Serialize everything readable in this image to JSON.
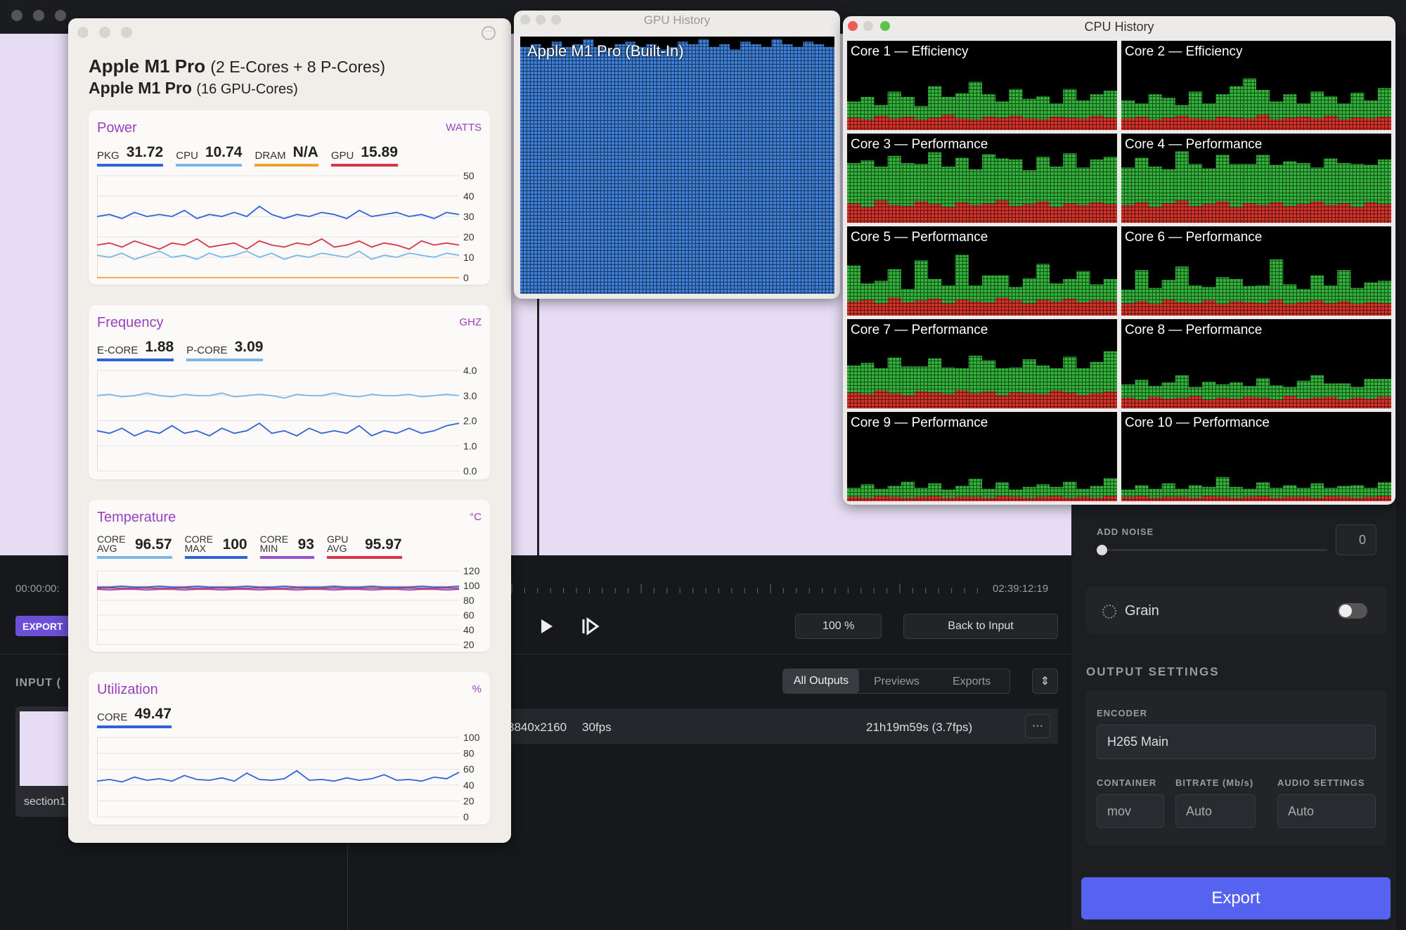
{
  "app": {
    "timecode_start": "00:00:00:",
    "export_tag": "EXPORT",
    "input_label": "INPUT (",
    "thumbnail_label": "section1",
    "timecode_end": "02:39:12:19",
    "zoom": "100 %",
    "back_button": "Back to Input",
    "tabs": [
      "All Outputs",
      "Previews",
      "Exports"
    ],
    "output_row": {
      "resolution": "3840x2160",
      "fps": "30fps",
      "eta": "21h19m59s (3.7fps)"
    },
    "add_noise": {
      "label": "ADD NOISE",
      "value": 0
    },
    "grain": "Grain",
    "output_settings": {
      "title": "OUTPUT SETTINGS",
      "encoder_label": "ENCODER",
      "encoder": "H265 Main",
      "container_label": "CONTAINER",
      "container": "mov",
      "bitrate_label": "BITRATE (Mb/s)",
      "bitrate": "Auto",
      "audio_label": "AUDIO SETTINGS",
      "audio": "Auto"
    },
    "export_button": "Export"
  },
  "stats": {
    "cpu_name": "Apple M1 Pro",
    "cpu_cores": "(2 E-Cores + 8 P-Cores)",
    "gpu_name": "Apple M1 Pro",
    "gpu_cores": "(16 GPU-Cores)",
    "power": {
      "type": "line",
      "title": "Power",
      "unit": "WATTS",
      "ylim": [
        0,
        50
      ],
      "yticks": [
        0,
        10,
        20,
        30,
        40,
        50
      ],
      "series": [
        {
          "name": "PKG",
          "value": 31.72,
          "color": "#2f63d6",
          "values": [
            30,
            31,
            29,
            32,
            30,
            31,
            30,
            33,
            29,
            31,
            30,
            32,
            30,
            35,
            31,
            29,
            31,
            30,
            32,
            31,
            29,
            33,
            30,
            31,
            32,
            30,
            31,
            29,
            32,
            31
          ]
        },
        {
          "name": "CPU",
          "value": 10.74,
          "color": "#7ab6e8",
          "values": [
            11,
            10,
            12,
            9,
            11,
            13,
            10,
            11,
            9,
            12,
            10,
            11,
            13,
            10,
            12,
            9,
            11,
            10,
            12,
            11,
            10,
            13,
            9,
            11,
            10,
            12,
            11,
            10,
            12,
            11
          ]
        },
        {
          "name": "DRAM",
          "value": "N/A",
          "color": "#f0a030",
          "values": [
            0,
            0,
            0,
            0,
            0,
            0,
            0,
            0,
            0,
            0,
            0,
            0,
            0,
            0,
            0,
            0,
            0,
            0,
            0,
            0,
            0,
            0,
            0,
            0,
            0,
            0,
            0,
            0,
            0,
            0
          ]
        },
        {
          "name": "GPU",
          "value": 15.89,
          "color": "#d8344a",
          "values": [
            16,
            17,
            15,
            18,
            16,
            14,
            17,
            16,
            19,
            15,
            16,
            17,
            14,
            18,
            16,
            15,
            17,
            16,
            19,
            15,
            16,
            18,
            15,
            17,
            16,
            14,
            18,
            16,
            17,
            16
          ]
        }
      ]
    },
    "frequency": {
      "type": "line",
      "title": "Frequency",
      "unit": "GHZ",
      "ylim": [
        0,
        4
      ],
      "yticks": [
        {
          "value": 0,
          "label": "0.0"
        },
        {
          "value": 1,
          "label": "1.0"
        },
        {
          "value": 2,
          "label": "2.0"
        },
        {
          "value": 3,
          "label": "3.0"
        },
        {
          "value": 4,
          "label": "4.0"
        }
      ],
      "series": [
        {
          "name": "E-CORE",
          "value": 1.88,
          "color": "#2f63d6",
          "values": [
            1.6,
            1.5,
            1.7,
            1.4,
            1.6,
            1.5,
            1.8,
            1.5,
            1.6,
            1.4,
            1.7,
            1.5,
            1.6,
            1.9,
            1.5,
            1.6,
            1.4,
            1.7,
            1.5,
            1.6,
            1.5,
            1.8,
            1.4,
            1.6,
            1.5,
            1.7,
            1.5,
            1.6,
            1.8,
            1.9
          ]
        },
        {
          "name": "P-CORE",
          "value": 3.09,
          "color": "#7ab6e8",
          "values": [
            3.0,
            3.05,
            2.95,
            3.0,
            3.1,
            3.0,
            2.95,
            3.05,
            3.0,
            3.0,
            3.1,
            2.95,
            3.0,
            3.05,
            3.0,
            2.9,
            3.05,
            3.0,
            3.0,
            3.1,
            3.0,
            2.95,
            3.05,
            3.0,
            3.0,
            3.05,
            2.95,
            3.0,
            3.05,
            3.0
          ]
        }
      ]
    },
    "temperature": {
      "type": "line",
      "title": "Temperature",
      "unit": "°C",
      "ylim": [
        20,
        120
      ],
      "yticks": [
        20,
        40,
        60,
        80,
        100,
        120
      ],
      "series": [
        {
          "name": "CORE AVG",
          "value": 96.57,
          "color": "#7ab6e8",
          "values": [
            97,
            96,
            97,
            97,
            96,
            97,
            97,
            96,
            97,
            97,
            96,
            97,
            97,
            96,
            97,
            97,
            96,
            97,
            97,
            96,
            97,
            97,
            96,
            97,
            97,
            96,
            97,
            97,
            96,
            97
          ]
        },
        {
          "name": "CORE MAX",
          "value": 100,
          "color": "#2f63d6",
          "values": [
            98,
            98,
            99,
            98,
            98,
            99,
            98,
            98,
            99,
            98,
            98,
            98,
            99,
            98,
            98,
            99,
            98,
            98,
            98,
            99,
            98,
            98,
            99,
            98,
            98,
            98,
            99,
            98,
            98,
            99
          ]
        },
        {
          "name": "CORE MIN",
          "value": 93,
          "color": "#9b4fc8",
          "values": [
            95,
            94,
            95,
            95,
            94,
            95,
            95,
            94,
            95,
            95,
            94,
            95,
            95,
            94,
            95,
            95,
            94,
            95,
            95,
            94,
            95,
            95,
            94,
            95,
            95,
            94,
            95,
            95,
            94,
            95
          ]
        },
        {
          "name": "GPU AVG",
          "value": 95.97,
          "color": "#d8344a",
          "values": [
            96,
            97,
            96,
            96,
            97,
            96,
            96,
            97,
            96,
            96,
            97,
            96,
            96,
            97,
            96,
            96,
            97,
            96,
            96,
            97,
            96,
            96,
            97,
            96,
            96,
            97,
            96,
            96,
            97,
            96
          ]
        }
      ]
    },
    "utilization": {
      "type": "line",
      "title": "Utilization",
      "unit": "%",
      "ylim": [
        0,
        100
      ],
      "yticks": [
        0,
        20,
        40,
        60,
        80,
        100
      ],
      "series": [
        {
          "name": "CORE",
          "value": 49.47,
          "color": "#2f63d6",
          "values": [
            45,
            47,
            44,
            50,
            46,
            48,
            45,
            52,
            47,
            46,
            49,
            45,
            55,
            47,
            46,
            48,
            58,
            46,
            47,
            45,
            49,
            46,
            48,
            53,
            46,
            47,
            45,
            50,
            48,
            56
          ]
        }
      ]
    }
  },
  "gpu_history": {
    "type": "bar",
    "title": "GPU History",
    "label": "Apple M1 Pro (Built-In)",
    "color": "#3f82dc",
    "ylim": [
      0,
      100
    ],
    "values": [
      96,
      97,
      95,
      98,
      96,
      97,
      99,
      96,
      95,
      97,
      98,
      96,
      97,
      95,
      96,
      98,
      97,
      99,
      96,
      97,
      95,
      98,
      97,
      96,
      99,
      97,
      96,
      98,
      97,
      96
    ]
  },
  "cpu_history": {
    "type": "bar",
    "title": "CPU History",
    "ylim": [
      0,
      100
    ],
    "system_color": "#d9342b",
    "user_color": "#33b53b",
    "cores": [
      {
        "name": "Core 1 — Efficiency",
        "system": [
          14,
          12,
          16,
          13,
          15,
          12,
          14,
          17,
          13,
          12,
          15,
          14,
          16,
          13,
          12,
          15,
          14,
          13,
          16,
          14
        ],
        "user": [
          18,
          25,
          12,
          30,
          22,
          15,
          35,
          20,
          28,
          42,
          25,
          18,
          30,
          22,
          26,
          15,
          32,
          20,
          24,
          30
        ]
      },
      {
        "name": "Core 2 — Efficiency",
        "system": [
          13,
          15,
          12,
          14,
          16,
          13,
          12,
          15,
          14,
          13,
          17,
          12,
          14,
          15,
          13,
          16,
          12,
          14,
          13,
          15
        ],
        "user": [
          20,
          15,
          28,
          22,
          12,
          30,
          18,
          25,
          35,
          45,
          28,
          20,
          26,
          15,
          30,
          22,
          18,
          28,
          20,
          32
        ]
      },
      {
        "name": "Core 3 — Performance",
        "system": [
          22,
          18,
          25,
          20,
          19,
          24,
          21,
          18,
          23,
          20,
          22,
          25,
          19,
          21,
          24,
          18,
          22,
          20,
          23,
          21
        ],
        "user": [
          45,
          52,
          38,
          55,
          48,
          42,
          58,
          45,
          50,
          40,
          55,
          47,
          52,
          38,
          50,
          45,
          56,
          42,
          48,
          53
        ]
      },
      {
        "name": "Core 4 — Performance",
        "system": [
          20,
          23,
          18,
          22,
          25,
          19,
          21,
          24,
          18,
          22,
          20,
          23,
          19,
          21,
          24,
          20,
          22,
          18,
          23,
          21
        ],
        "user": [
          42,
          50,
          45,
          38,
          55,
          47,
          40,
          52,
          48,
          44,
          56,
          42,
          50,
          46,
          38,
          52,
          45,
          48,
          42,
          50
        ]
      },
      {
        "name": "Core 5 — Performance",
        "system": [
          16,
          18,
          14,
          20,
          15,
          17,
          19,
          14,
          18,
          16,
          15,
          20,
          17,
          14,
          18,
          16,
          19,
          15,
          17,
          16
        ],
        "user": [
          40,
          18,
          25,
          32,
          15,
          45,
          22,
          20,
          50,
          18,
          30,
          25,
          15,
          28,
          40,
          20,
          22,
          35,
          18,
          25
        ]
      },
      {
        "name": "Core 6 — Performance",
        "system": [
          14,
          16,
          13,
          18,
          15,
          14,
          17,
          13,
          16,
          15,
          14,
          18,
          13,
          15,
          17,
          14,
          16,
          13,
          15,
          14
        ],
        "user": [
          15,
          35,
          18,
          22,
          40,
          20,
          15,
          30,
          25,
          18,
          20,
          45,
          22,
          15,
          28,
          20,
          35,
          18,
          22,
          25
        ]
      },
      {
        "name": "Core 7 — Performance",
        "system": [
          18,
          16,
          20,
          17,
          15,
          19,
          18,
          16,
          20,
          17,
          19,
          15,
          18,
          17,
          16,
          20,
          18,
          15,
          17,
          19
        ],
        "user": [
          30,
          35,
          25,
          40,
          32,
          28,
          38,
          30,
          25,
          42,
          35,
          30,
          28,
          38,
          32,
          25,
          40,
          30,
          35,
          45
        ]
      },
      {
        "name": "Core 8 — Performance",
        "system": [
          12,
          10,
          13,
          11,
          12,
          14,
          10,
          12,
          11,
          13,
          12,
          10,
          14,
          11,
          12,
          13,
          10,
          12,
          11,
          13
        ],
        "user": [
          15,
          22,
          12,
          18,
          25,
          10,
          20,
          15,
          18,
          12,
          22,
          16,
          10,
          20,
          25,
          15,
          18,
          12,
          22,
          20
        ]
      },
      {
        "name": "Core 9 — Performance",
        "system": [
          5,
          4,
          6,
          5,
          4,
          5,
          6,
          4,
          5,
          5,
          4,
          6,
          5,
          4,
          5,
          6,
          4,
          5,
          4,
          6
        ],
        "user": [
          10,
          15,
          8,
          12,
          18,
          10,
          14,
          9,
          12,
          20,
          10,
          15,
          8,
          12,
          14,
          10,
          18,
          9,
          13,
          20
        ]
      },
      {
        "name": "Core 10 — Performance",
        "system": [
          5,
          6,
          4,
          5,
          5,
          4,
          6,
          5,
          4,
          5,
          6,
          4,
          5,
          5,
          4,
          6,
          5,
          4,
          5,
          6
        ],
        "user": [
          8,
          12,
          10,
          15,
          9,
          14,
          10,
          22,
          12,
          9,
          15,
          11,
          13,
          10,
          16,
          9,
          12,
          14,
          10,
          15
        ]
      }
    ]
  }
}
